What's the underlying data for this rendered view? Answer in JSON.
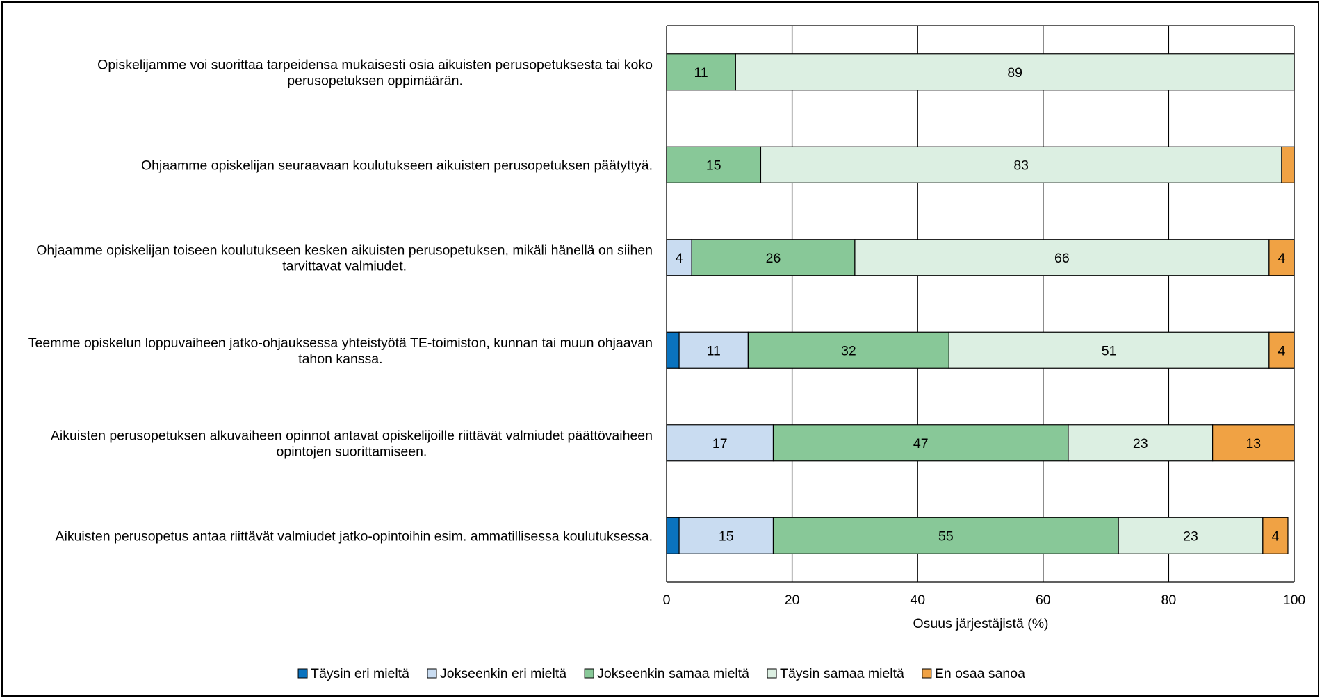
{
  "chart_data": {
    "type": "bar",
    "orientation": "horizontal",
    "stacked": true,
    "categories": [
      [
        "Opiskelijamme voi suorittaa tarpeidensa mukaisesti osia aikuisten perusopetuksesta tai koko",
        "perusopetuksen oppimäärän."
      ],
      [
        "Ohjaamme opiskelijan seuraavaan koulutukseen aikuisten perusopetuksen päätyttyä."
      ],
      [
        "Ohjaamme opiskelijan toiseen koulutukseen kesken aikuisten perusopetuksen, mikäli hänellä on siihen",
        "tarvittavat valmiudet."
      ],
      [
        "Teemme opiskelun loppuvaiheen jatko-ohjauksessa yhteistyötä TE-toimiston, kunnan tai muun ohjaavan",
        "tahon kanssa."
      ],
      [
        "Aikuisten perusopetuksen alkuvaiheen opinnot antavat opiskelijoille riittävät valmiudet päättövaiheen",
        "opintojen suorittamiseen."
      ],
      [
        "Aikuisten perusopetus antaa riittävät valmiudet jatko-opintoihin esim. ammatillisessa koulutuksessa."
      ]
    ],
    "series": [
      {
        "name": "Täysin eri mieltä",
        "color": "#0a73bf",
        "values": [
          0,
          0,
          0,
          2,
          0,
          2
        ],
        "labels": [
          "",
          "",
          "",
          "",
          "",
          ""
        ]
      },
      {
        "name": "Jokseenkin eri mieltä",
        "color": "#c9dcf1",
        "values": [
          0,
          0,
          4,
          11,
          17,
          15
        ],
        "labels": [
          "",
          "",
          "4",
          "11",
          "17",
          "15"
        ]
      },
      {
        "name": "Jokseenkin samaa mieltä",
        "color": "#88c898",
        "values": [
          11,
          15,
          26,
          32,
          47,
          55
        ],
        "labels": [
          "11",
          "15",
          "26",
          "32",
          "47",
          "55"
        ]
      },
      {
        "name": "Täysin samaa mieltä",
        "color": "#dcefe2",
        "values": [
          89,
          83,
          66,
          51,
          23,
          23
        ],
        "labels": [
          "89",
          "83",
          "66",
          "51",
          "23",
          "23"
        ]
      },
      {
        "name": "En osaa sanoa",
        "color": "#f0a244",
        "values": [
          0,
          2,
          4,
          4,
          13,
          4
        ],
        "labels": [
          "",
          "",
          "4",
          "4",
          "13",
          "4"
        ]
      }
    ],
    "xlabel": "Osuus järjestäjistä (%)",
    "xlim": [
      0,
      100
    ],
    "xticks": [
      0,
      20,
      40,
      60,
      80,
      100
    ],
    "grid": true,
    "legend_position": "bottom"
  }
}
